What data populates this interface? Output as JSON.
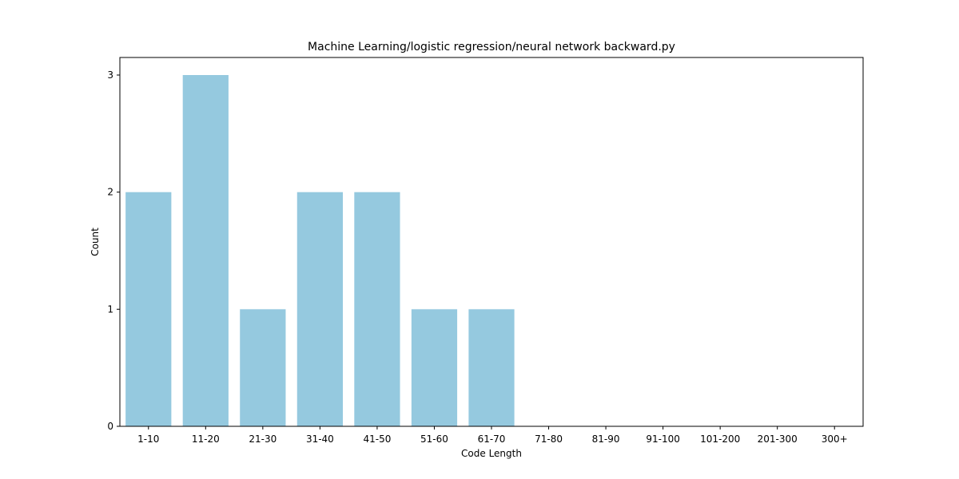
{
  "chart_data": {
    "type": "bar",
    "title": "Machine Learning/logistic regression/neural network backward.py",
    "xlabel": "Code Length",
    "ylabel": "Count",
    "categories": [
      "1-10",
      "11-20",
      "21-30",
      "31-40",
      "41-50",
      "51-60",
      "61-70",
      "71-80",
      "81-90",
      "91-100",
      "101-200",
      "201-300",
      "300+"
    ],
    "values": [
      2,
      3,
      1,
      2,
      2,
      1,
      1,
      0,
      0,
      0,
      0,
      0,
      0
    ],
    "ylim": [
      0,
      3.15
    ],
    "yticks": [
      0,
      1,
      2,
      3
    ],
    "grid": false,
    "bar_color": "#95c9df"
  }
}
